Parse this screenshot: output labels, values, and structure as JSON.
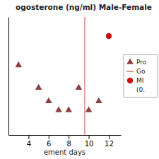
{
  "chart_data": {
    "type": "scatter",
    "title": "ogosterone (ng/ml) Male-Female",
    "x_label": "ement days",
    "series": [
      {
        "name": "Pro",
        "type": "scatter",
        "marker": "triangle",
        "color": "#8b4040",
        "x": [
          3,
          5,
          6,
          7,
          8,
          9,
          10,
          11
        ],
        "values": [
          0.62,
          0.42,
          0.3,
          0.22,
          0.22,
          0.42,
          0.22,
          0.3
        ]
      },
      {
        "name": "Go",
        "type": "vline",
        "color": "#cc7777",
        "x": [
          9.6
        ]
      },
      {
        "name": "MI",
        "type": "scatter",
        "marker": "circle",
        "color": "#cc1111",
        "x": [
          12
        ],
        "values": [
          0.88
        ]
      },
      {
        "name": "(0.",
        "values": []
      }
    ],
    "xlim": [
      2.0,
      13.2
    ],
    "ylim": [
      0.0,
      1.05
    ],
    "xticks": [
      4,
      6,
      8,
      10,
      12
    ],
    "yticks": [],
    "grid": false,
    "tick_labels": "x",
    "legend": "right"
  }
}
